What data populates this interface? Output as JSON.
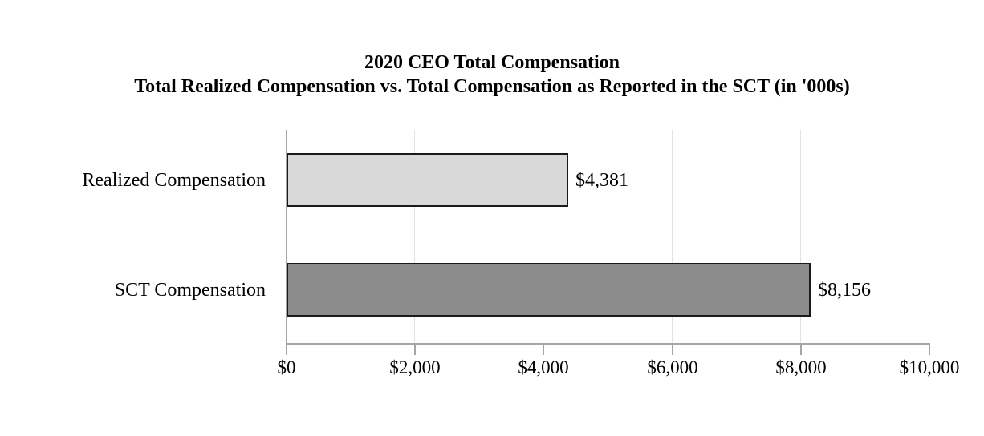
{
  "chart_data": {
    "type": "bar",
    "orientation": "horizontal",
    "title": "2020 CEO Total Compensation",
    "subtitle": "Total Realized Compensation vs. Total Compensation as Reported in the SCT (in '000s)",
    "categories": [
      "Realized Compensation",
      "SCT Compensation"
    ],
    "values": [
      4381,
      8156
    ],
    "value_labels": [
      "$4,381",
      "$8,156"
    ],
    "units": "thousands of dollars",
    "bar_colors": [
      "#d9d9d9",
      "#8c8c8c"
    ],
    "bar_border_color": "#1a1a1a",
    "xlim": [
      0,
      10000
    ],
    "x_ticks": [
      0,
      2000,
      4000,
      6000,
      8000,
      10000
    ],
    "x_tick_labels": [
      "$0",
      "$2,000",
      "$4,000",
      "$6,000",
      "$8,000",
      "$10,000"
    ],
    "grid": "vertical-gridlines-on",
    "legend": "none",
    "axis_color": "#a6a6a6",
    "gridline_color": "#e2e2e2",
    "text_color": "#000000",
    "background_color": "#ffffff"
  }
}
